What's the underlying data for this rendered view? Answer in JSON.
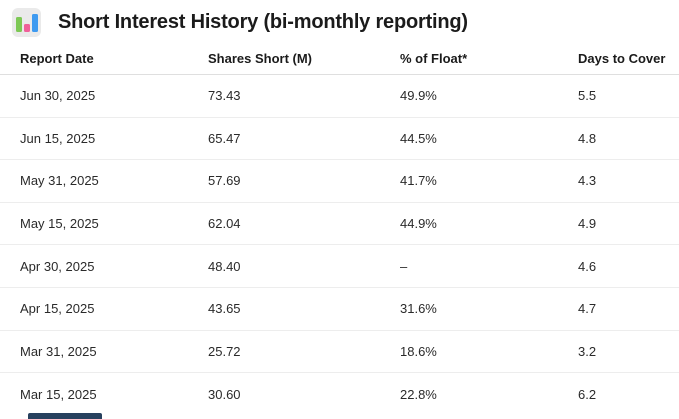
{
  "header": {
    "icon": "bar-chart-icon",
    "title": "Short Interest History (bi-monthly reporting)"
  },
  "table": {
    "columns": [
      "Report Date",
      "Shares Short (M)",
      "% of Float*",
      "Days to Cover"
    ],
    "rows": [
      [
        "Jun 30, 2025",
        "73.43",
        "49.9%",
        "5.5"
      ],
      [
        "Jun 15, 2025",
        "65.47",
        "44.5%",
        "4.8"
      ],
      [
        "May 31, 2025",
        "57.69",
        "41.7%",
        "4.3"
      ],
      [
        "May 15, 2025",
        "62.04",
        "44.9%",
        "4.9"
      ],
      [
        "Apr 30, 2025",
        "48.40",
        "–",
        "4.6"
      ],
      [
        "Apr 15, 2025",
        "43.65",
        "31.6%",
        "4.7"
      ],
      [
        "Mar 31, 2025",
        "25.72",
        "18.6%",
        "3.2"
      ],
      [
        "Mar 15, 2025",
        "30.60",
        "22.8%",
        "6.2"
      ]
    ]
  },
  "colors": {
    "icon_bg": "#eaeaea",
    "icon_green": "#7dc855",
    "icon_pink": "#f0609a",
    "icon_blue": "#3e9af0",
    "divider_header": "#dfdfdf",
    "divider_row": "#ededed",
    "text_primary": "#1b1b1b",
    "text_cell": "#2a2a2a",
    "partial_element_navy": "#27415e"
  }
}
